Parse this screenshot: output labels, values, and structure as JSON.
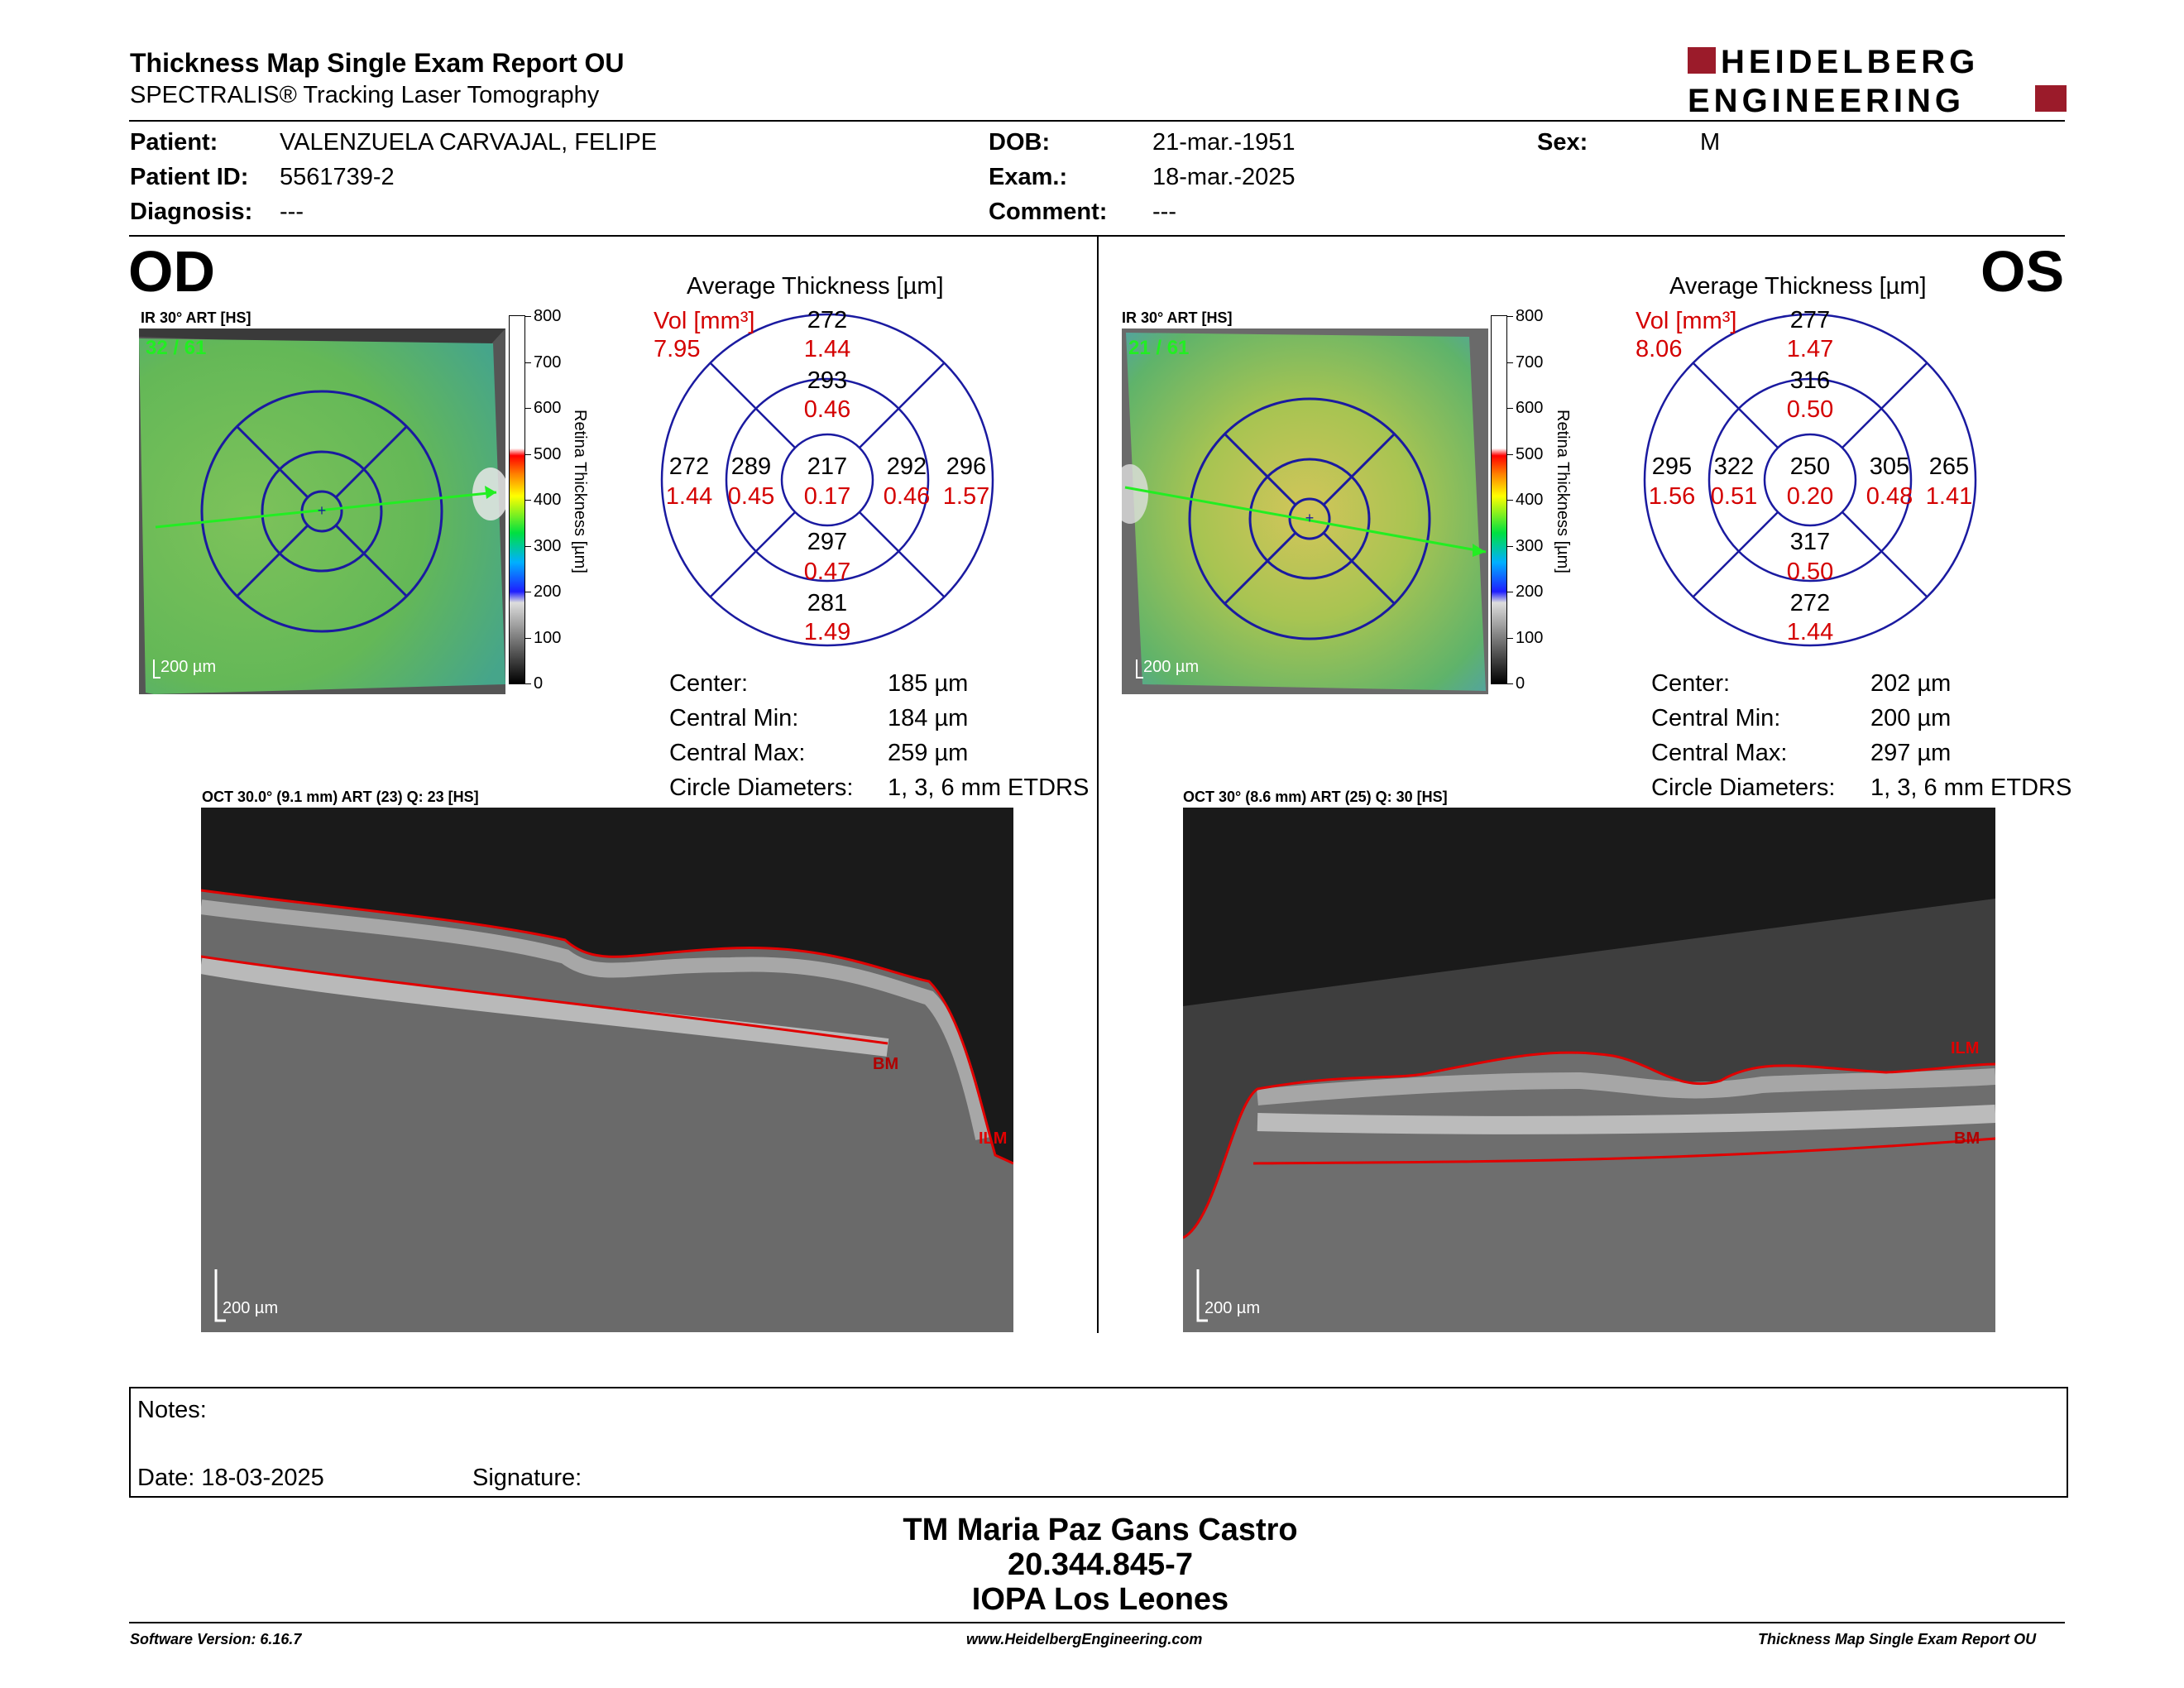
{
  "header": {
    "title": "Thickness Map Single Exam Report OU",
    "subtitle": "SPECTRALIS® Tracking Laser Tomography",
    "logo_line1": "HEIDELBERG",
    "logo_line2": "ENGINEERING"
  },
  "patient": {
    "patient_label": "Patient:",
    "patient_value": "VALENZUELA CARVAJAL, FELIPE",
    "id_label": "Patient ID:",
    "id_value": "5561739-2",
    "diag_label": "Diagnosis:",
    "diag_value": "---",
    "dob_label": "DOB:",
    "dob_value": "21-mar.-1951",
    "exam_label": "Exam.:",
    "exam_value": "18-mar.-2025",
    "comment_label": "Comment:",
    "comment_value": "---",
    "sex_label": "Sex:",
    "sex_value": "M"
  },
  "od": {
    "eye": "OD",
    "ir_label": "IR 30° ART [HS]",
    "frames": "32 / 61",
    "scale": "200 µm",
    "colorbar_title": "Retina Thickness [µm]",
    "colorbar_ticks": [
      "800",
      "700",
      "600",
      "500",
      "400",
      "300",
      "200",
      "100",
      "0"
    ],
    "avg_title": "Average Thickness [µm]",
    "vol_label": "Vol [mm³]",
    "vol_value": "7.95",
    "grid": {
      "center": [
        "217",
        "0.17"
      ],
      "inner_sup": [
        "293",
        "0.46"
      ],
      "inner_inf": [
        "297",
        "0.47"
      ],
      "inner_left": [
        "289",
        "0.45"
      ],
      "inner_right": [
        "292",
        "0.46"
      ],
      "outer_sup": [
        "272",
        "1.44"
      ],
      "outer_inf": [
        "281",
        "1.49"
      ],
      "outer_left": [
        "272",
        "1.44"
      ],
      "outer_right": [
        "296",
        "1.57"
      ]
    },
    "stats": [
      {
        "label": "Center:",
        "value": "185 µm"
      },
      {
        "label": "Central Min:",
        "value": "184 µm"
      },
      {
        "label": "Central Max:",
        "value": "259 µm"
      },
      {
        "label": "Circle Diameters:",
        "value": "1, 3, 6 mm ETDRS"
      }
    ],
    "oct_label": "OCT 30.0° (9.1 mm) ART (23) Q: 23 [HS]",
    "oct_scale": "200 µm",
    "bm": "BM",
    "ilm": "ILM"
  },
  "os": {
    "eye": "OS",
    "ir_label": "IR 30° ART [HS]",
    "frames": "21 / 61",
    "scale": "200 µm",
    "colorbar_title": "Retina Thickness [µm]",
    "colorbar_ticks": [
      "800",
      "700",
      "600",
      "500",
      "400",
      "300",
      "200",
      "100",
      "0"
    ],
    "avg_title": "Average Thickness [µm]",
    "vol_label": "Vol [mm³]",
    "vol_value": "8.06",
    "grid": {
      "center": [
        "250",
        "0.20"
      ],
      "inner_sup": [
        "316",
        "0.50"
      ],
      "inner_inf": [
        "317",
        "0.50"
      ],
      "inner_left": [
        "322",
        "0.51"
      ],
      "inner_right": [
        "305",
        "0.48"
      ],
      "outer_sup": [
        "277",
        "1.47"
      ],
      "outer_inf": [
        "272",
        "1.44"
      ],
      "outer_left": [
        "295",
        "1.56"
      ],
      "outer_right": [
        "265",
        "1.41"
      ]
    },
    "stats": [
      {
        "label": "Center:",
        "value": "202 µm"
      },
      {
        "label": "Central Min:",
        "value": "200 µm"
      },
      {
        "label": "Central Max:",
        "value": "297 µm"
      },
      {
        "label": "Circle Diameters:",
        "value": "1, 3, 6 mm ETDRS"
      }
    ],
    "oct_label": "OCT 30° (8.6 mm) ART (25) Q: 30 [HS]",
    "oct_scale": "200 µm",
    "bm": "BM",
    "ilm": "ILM"
  },
  "notes": {
    "notes_label": "Notes:",
    "date_label": "Date: 18-03-2025",
    "signature_label": "Signature:"
  },
  "signer": {
    "name": "TM Maria Paz Gans Castro",
    "rut": "20.344.845-7",
    "place": "IOPA Los Leones"
  },
  "footer": {
    "left": "Software Version: 6.16.7",
    "center": "www.HeidelbergEngineering.com",
    "right": "Thickness Map Single Exam Report OU"
  },
  "colors": {
    "red": "#d40000",
    "logo_red": "#9b1b2a",
    "grid_blue": "#1a1aa0"
  }
}
